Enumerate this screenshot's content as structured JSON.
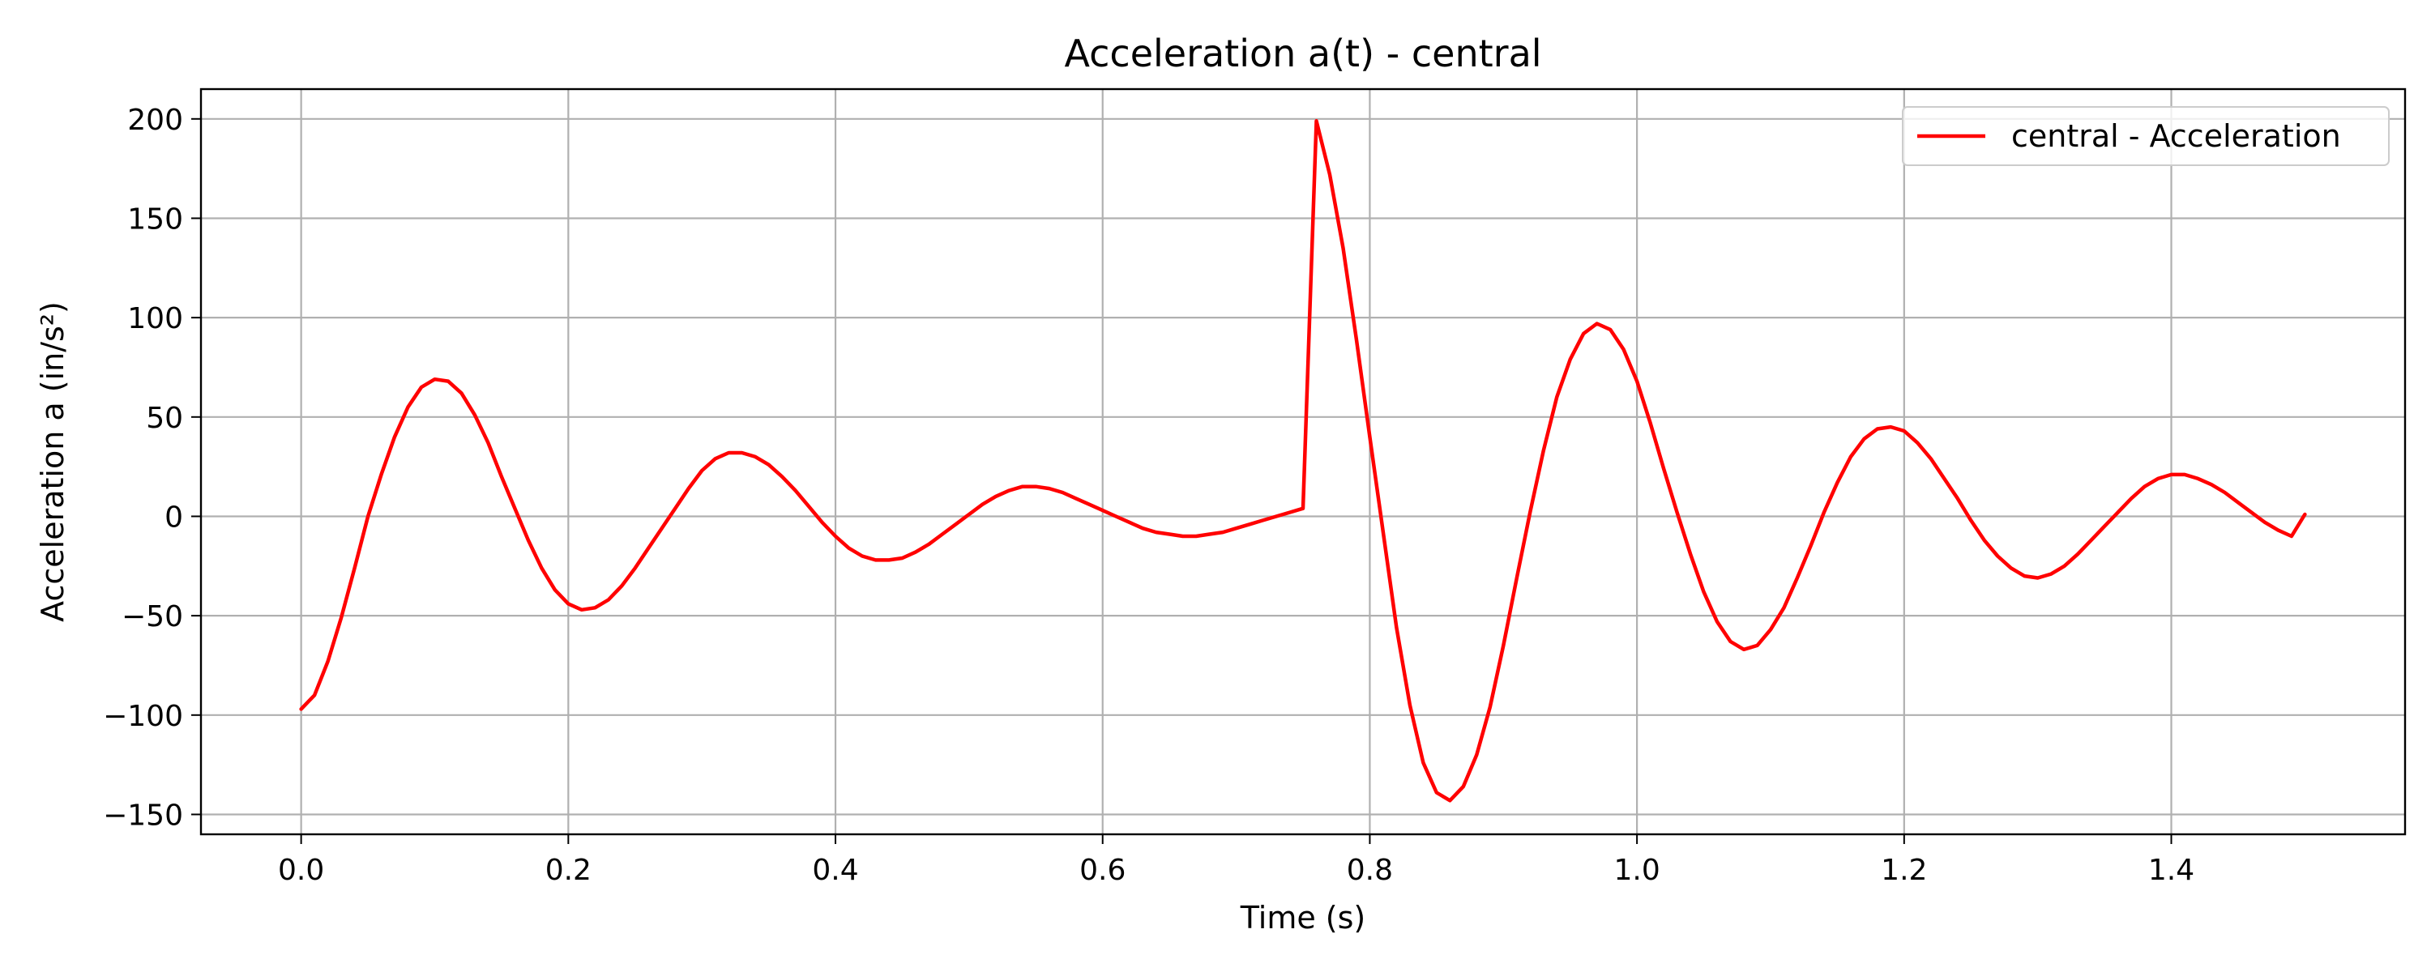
{
  "chart_data": {
    "type": "line",
    "title": "Acceleration a(t) - central",
    "xlabel": "Time (s)",
    "ylabel": "Acceleration a (in/s²)",
    "xlim": [
      -0.075,
      1.575
    ],
    "ylim": [
      -160,
      215
    ],
    "xticks": [
      0.0,
      0.2,
      0.4,
      0.6,
      0.8,
      1.0,
      1.2,
      1.4
    ],
    "xtick_labels": [
      "0.0",
      "0.2",
      "0.4",
      "0.6",
      "0.8",
      "1.0",
      "1.2",
      "1.4"
    ],
    "yticks": [
      -150,
      -100,
      -50,
      0,
      50,
      100,
      150,
      200
    ],
    "ytick_labels": [
      "−150",
      "−100",
      "−50",
      "0",
      "50",
      "100",
      "150",
      "200"
    ],
    "grid": true,
    "legend_position": "top-right",
    "series": [
      {
        "name": "central - Acceleration",
        "color": "#ff0000",
        "x": [
          0.0,
          0.01,
          0.02,
          0.03,
          0.04,
          0.05,
          0.06,
          0.07,
          0.08,
          0.09,
          0.1,
          0.11,
          0.12,
          0.13,
          0.14,
          0.15,
          0.16,
          0.17,
          0.18,
          0.19,
          0.2,
          0.21,
          0.22,
          0.23,
          0.24,
          0.25,
          0.26,
          0.27,
          0.28,
          0.29,
          0.3,
          0.31,
          0.32,
          0.33,
          0.34,
          0.35,
          0.36,
          0.37,
          0.38,
          0.39,
          0.4,
          0.41,
          0.42,
          0.43,
          0.44,
          0.45,
          0.46,
          0.47,
          0.48,
          0.49,
          0.5,
          0.51,
          0.52,
          0.53,
          0.54,
          0.55,
          0.56,
          0.57,
          0.58,
          0.59,
          0.6,
          0.61,
          0.62,
          0.63,
          0.64,
          0.65,
          0.66,
          0.67,
          0.68,
          0.69,
          0.7,
          0.71,
          0.72,
          0.73,
          0.74,
          0.75,
          0.76,
          0.77,
          0.78,
          0.79,
          0.8,
          0.81,
          0.82,
          0.83,
          0.84,
          0.85,
          0.86,
          0.87,
          0.88,
          0.89,
          0.9,
          0.91,
          0.92,
          0.93,
          0.94,
          0.95,
          0.96,
          0.97,
          0.98,
          0.99,
          1.0,
          1.01,
          1.02,
          1.03,
          1.04,
          1.05,
          1.06,
          1.07,
          1.08,
          1.09,
          1.1,
          1.11,
          1.12,
          1.13,
          1.14,
          1.15,
          1.16,
          1.17,
          1.18,
          1.19,
          1.2,
          1.21,
          1.22,
          1.23,
          1.24,
          1.25,
          1.26,
          1.27,
          1.28,
          1.29,
          1.3,
          1.31,
          1.32,
          1.33,
          1.34,
          1.35,
          1.36,
          1.37,
          1.38,
          1.39,
          1.4,
          1.41,
          1.42,
          1.43,
          1.44,
          1.45,
          1.46,
          1.47,
          1.48,
          1.49,
          1.5
        ],
        "y": [
          -97,
          -90,
          -73,
          -51,
          -26,
          0,
          21,
          40,
          55,
          65,
          69,
          68,
          62,
          51,
          37,
          20,
          4,
          -12,
          -26,
          -37,
          -44,
          -47,
          -46,
          -42,
          -35,
          -26,
          -16,
          -6,
          4,
          14,
          23,
          29,
          32,
          32,
          30,
          26,
          20,
          13,
          5,
          -3,
          -10,
          -16,
          -20,
          -22,
          -22,
          -21,
          -18,
          -14,
          -9,
          -4,
          1,
          6,
          10,
          13,
          15,
          15,
          14,
          12,
          9,
          6,
          3,
          0,
          -3,
          -6,
          -8,
          -9,
          -10,
          -10,
          -9,
          -8,
          -6,
          -4,
          -2,
          0,
          2,
          4,
          199,
          172,
          135,
          89,
          40,
          -8,
          -56,
          -95,
          -124,
          -139,
          -143,
          -136,
          -120,
          -96,
          -65,
          -31,
          2,
          33,
          60,
          79,
          92,
          97,
          94,
          84,
          68,
          47,
          24,
          2,
          -19,
          -38,
          -53,
          -63,
          -67,
          -65,
          -57,
          -46,
          -31,
          -15,
          2,
          17,
          30,
          39,
          44,
          45,
          43,
          37,
          29,
          19,
          9,
          -2,
          -12,
          -20,
          -26,
          -30,
          -31,
          -29,
          -25,
          -19,
          -12,
          -5,
          2,
          9,
          15,
          19,
          21,
          21,
          19,
          16,
          12,
          7,
          2,
          -3,
          -7,
          -10,
          1
        ]
      }
    ]
  }
}
